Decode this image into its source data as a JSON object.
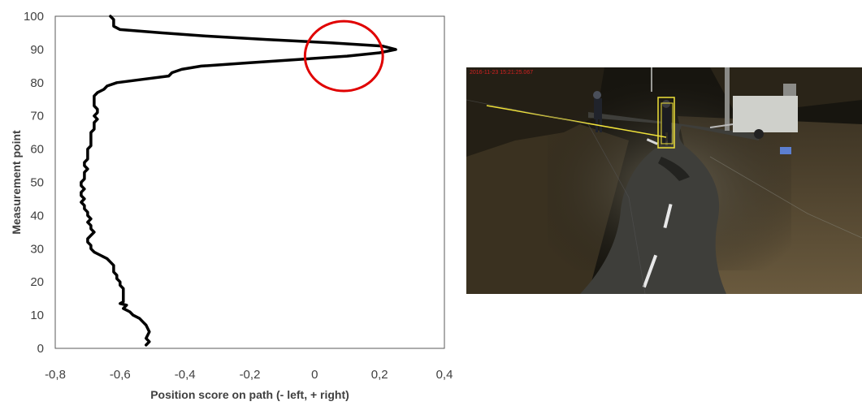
{
  "chart_data": {
    "type": "line",
    "title": "",
    "xlabel": "Position score on path (- left, + right)",
    "ylabel": "Measurement point",
    "xlim": [
      -0.8,
      0.4
    ],
    "ylim": [
      0,
      100
    ],
    "x_ticks": [
      "-0,8",
      "-0,6",
      "-0,4",
      "-0,2",
      "0",
      "0,2",
      "0,4"
    ],
    "y_ticks": [
      "0",
      "10",
      "20",
      "30",
      "40",
      "50",
      "60",
      "70",
      "80",
      "90",
      "100"
    ],
    "grid": false,
    "series": [
      {
        "color": "#000000",
        "points": [
          [
            -0.52,
            1
          ],
          [
            -0.51,
            2
          ],
          [
            -0.52,
            3
          ],
          [
            -0.51,
            5
          ],
          [
            -0.52,
            7
          ],
          [
            -0.53,
            8
          ],
          [
            -0.54,
            9
          ],
          [
            -0.56,
            10
          ],
          [
            -0.57,
            11
          ],
          [
            -0.59,
            12
          ],
          [
            -0.58,
            13
          ],
          [
            -0.6,
            13.5
          ],
          [
            -0.59,
            14
          ],
          [
            -0.59,
            16
          ],
          [
            -0.59,
            18
          ],
          [
            -0.6,
            19
          ],
          [
            -0.6,
            20
          ],
          [
            -0.61,
            21
          ],
          [
            -0.61,
            22
          ],
          [
            -0.62,
            23
          ],
          [
            -0.62,
            24
          ],
          [
            -0.62,
            25
          ],
          [
            -0.63,
            26
          ],
          [
            -0.64,
            27
          ],
          [
            -0.66,
            28
          ],
          [
            -0.68,
            29
          ],
          [
            -0.69,
            30
          ],
          [
            -0.69,
            31
          ],
          [
            -0.7,
            32
          ],
          [
            -0.7,
            33
          ],
          [
            -0.69,
            34
          ],
          [
            -0.68,
            35
          ],
          [
            -0.69,
            36
          ],
          [
            -0.69,
            37
          ],
          [
            -0.7,
            38
          ],
          [
            -0.69,
            39
          ],
          [
            -0.7,
            40
          ],
          [
            -0.7,
            41
          ],
          [
            -0.71,
            42
          ],
          [
            -0.71,
            43
          ],
          [
            -0.72,
            44
          ],
          [
            -0.71,
            45
          ],
          [
            -0.72,
            46
          ],
          [
            -0.72,
            47
          ],
          [
            -0.71,
            48
          ],
          [
            -0.72,
            49
          ],
          [
            -0.72,
            50
          ],
          [
            -0.71,
            51
          ],
          [
            -0.71,
            52
          ],
          [
            -0.71,
            53
          ],
          [
            -0.7,
            54
          ],
          [
            -0.71,
            55
          ],
          [
            -0.71,
            56
          ],
          [
            -0.7,
            57
          ],
          [
            -0.7,
            58
          ],
          [
            -0.7,
            59
          ],
          [
            -0.7,
            60
          ],
          [
            -0.69,
            61
          ],
          [
            -0.69,
            62
          ],
          [
            -0.69,
            63
          ],
          [
            -0.69,
            64
          ],
          [
            -0.69,
            65
          ],
          [
            -0.68,
            66
          ],
          [
            -0.68,
            67
          ],
          [
            -0.68,
            68
          ],
          [
            -0.67,
            69
          ],
          [
            -0.68,
            70
          ],
          [
            -0.67,
            71
          ],
          [
            -0.67,
            72
          ],
          [
            -0.68,
            73
          ],
          [
            -0.68,
            74
          ],
          [
            -0.68,
            75
          ],
          [
            -0.68,
            76
          ],
          [
            -0.67,
            77
          ],
          [
            -0.65,
            78
          ],
          [
            -0.64,
            79
          ],
          [
            -0.61,
            80
          ],
          [
            -0.53,
            81
          ],
          [
            -0.45,
            82
          ],
          [
            -0.44,
            83
          ],
          [
            -0.41,
            84
          ],
          [
            -0.35,
            85
          ],
          [
            -0.2,
            86
          ],
          [
            -0.05,
            87
          ],
          [
            0.1,
            88
          ],
          [
            0.2,
            89
          ],
          [
            0.25,
            90
          ],
          [
            0.21,
            91
          ],
          [
            0.05,
            92
          ],
          [
            -0.15,
            93
          ],
          [
            -0.33,
            94
          ],
          [
            -0.47,
            95
          ],
          [
            -0.6,
            96
          ],
          [
            -0.62,
            97
          ],
          [
            -0.62,
            98
          ],
          [
            -0.62,
            99
          ],
          [
            -0.63,
            100
          ]
        ]
      }
    ],
    "annotations": [
      {
        "type": "ellipse",
        "color": "#e00000",
        "center": [
          0.09,
          88
        ],
        "rx": 0.12,
        "ry": 10.5
      }
    ]
  },
  "photo": {
    "timestamp": "2016-11-23  15:21:25.067"
  }
}
